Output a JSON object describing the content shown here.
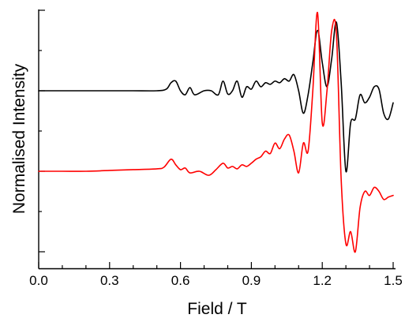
{
  "chart_data": {
    "type": "line",
    "title": "",
    "xlabel": "Field / T",
    "ylabel": "Normalised Intensity",
    "xlim": [
      0.0,
      1.5
    ],
    "x_major_ticks": [
      0.0,
      0.3,
      0.6,
      0.9,
      1.2,
      1.5
    ],
    "x_tick_labels": [
      "0.0",
      "0.3",
      "0.6",
      "0.9",
      "1.2",
      "1.5"
    ],
    "x_minor_tick_step": 0.1,
    "y_tick_labels_shown": false,
    "ylim": [
      -2.0,
      1.0
    ],
    "y_major_ticks": [
      -2,
      -1,
      0,
      1
    ],
    "y_minor_ticks": [
      -1.5,
      -0.5,
      0.5
    ],
    "grid": false,
    "legend": "none",
    "series": [
      {
        "color": "#000000",
        "x": [
          0.0,
          0.1,
          0.2,
          0.3,
          0.4,
          0.5,
          0.54,
          0.56,
          0.58,
          0.6,
          0.62,
          0.64,
          0.66,
          0.7,
          0.73,
          0.76,
          0.78,
          0.8,
          0.82,
          0.84,
          0.86,
          0.88,
          0.9,
          0.92,
          0.94,
          0.96,
          0.98,
          1.0,
          1.02,
          1.04,
          1.06,
          1.08,
          1.1,
          1.12,
          1.14,
          1.16,
          1.18,
          1.2,
          1.22,
          1.24,
          1.26,
          1.28,
          1.3,
          1.32,
          1.34,
          1.36,
          1.38,
          1.4,
          1.42,
          1.44,
          1.46,
          1.48,
          1.5
        ],
        "y": [
          0.0,
          0.0,
          0.0,
          0.0,
          0.0,
          0.0,
          0.02,
          0.1,
          0.12,
          0.0,
          -0.05,
          0.04,
          -0.05,
          0.0,
          0.0,
          -0.05,
          0.12,
          -0.04,
          0.0,
          0.12,
          -0.08,
          0.05,
          0.02,
          0.12,
          0.05,
          0.1,
          0.08,
          0.12,
          0.1,
          0.15,
          0.12,
          0.2,
          0.0,
          -0.28,
          -0.05,
          0.35,
          0.75,
          0.35,
          0.05,
          0.4,
          0.85,
          0.1,
          -1.0,
          -0.4,
          -0.35,
          -0.05,
          -0.15,
          -0.08,
          0.05,
          0.02,
          -0.28,
          -0.35,
          -0.15
        ]
      },
      {
        "color": "#ff0000",
        "x": [
          0.0,
          0.1,
          0.2,
          0.3,
          0.4,
          0.5,
          0.53,
          0.56,
          0.58,
          0.6,
          0.62,
          0.64,
          0.68,
          0.72,
          0.75,
          0.78,
          0.8,
          0.82,
          0.84,
          0.86,
          0.88,
          0.9,
          0.92,
          0.94,
          0.96,
          0.98,
          1.0,
          1.02,
          1.04,
          1.06,
          1.08,
          1.1,
          1.12,
          1.14,
          1.16,
          1.18,
          1.2,
          1.22,
          1.24,
          1.26,
          1.28,
          1.3,
          1.32,
          1.34,
          1.36,
          1.38,
          1.4,
          1.42,
          1.44,
          1.46,
          1.48,
          1.5
        ],
        "y": [
          -1.0,
          -1.0,
          -1.0,
          -0.99,
          -0.98,
          -0.97,
          -0.95,
          -0.85,
          -0.92,
          -0.98,
          -0.96,
          -1.02,
          -1.0,
          -1.05,
          -0.98,
          -0.9,
          -0.96,
          -0.94,
          -0.97,
          -0.92,
          -0.94,
          -0.9,
          -0.85,
          -0.82,
          -0.75,
          -0.78,
          -0.65,
          -0.72,
          -0.6,
          -0.55,
          -0.75,
          -1.02,
          -0.65,
          -0.75,
          0.0,
          0.97,
          -0.4,
          0.0,
          0.75,
          0.7,
          -1.1,
          -1.9,
          -1.75,
          -2.0,
          -1.45,
          -1.25,
          -1.3,
          -1.2,
          -1.25,
          -1.35,
          -1.32,
          -1.3
        ]
      }
    ]
  }
}
